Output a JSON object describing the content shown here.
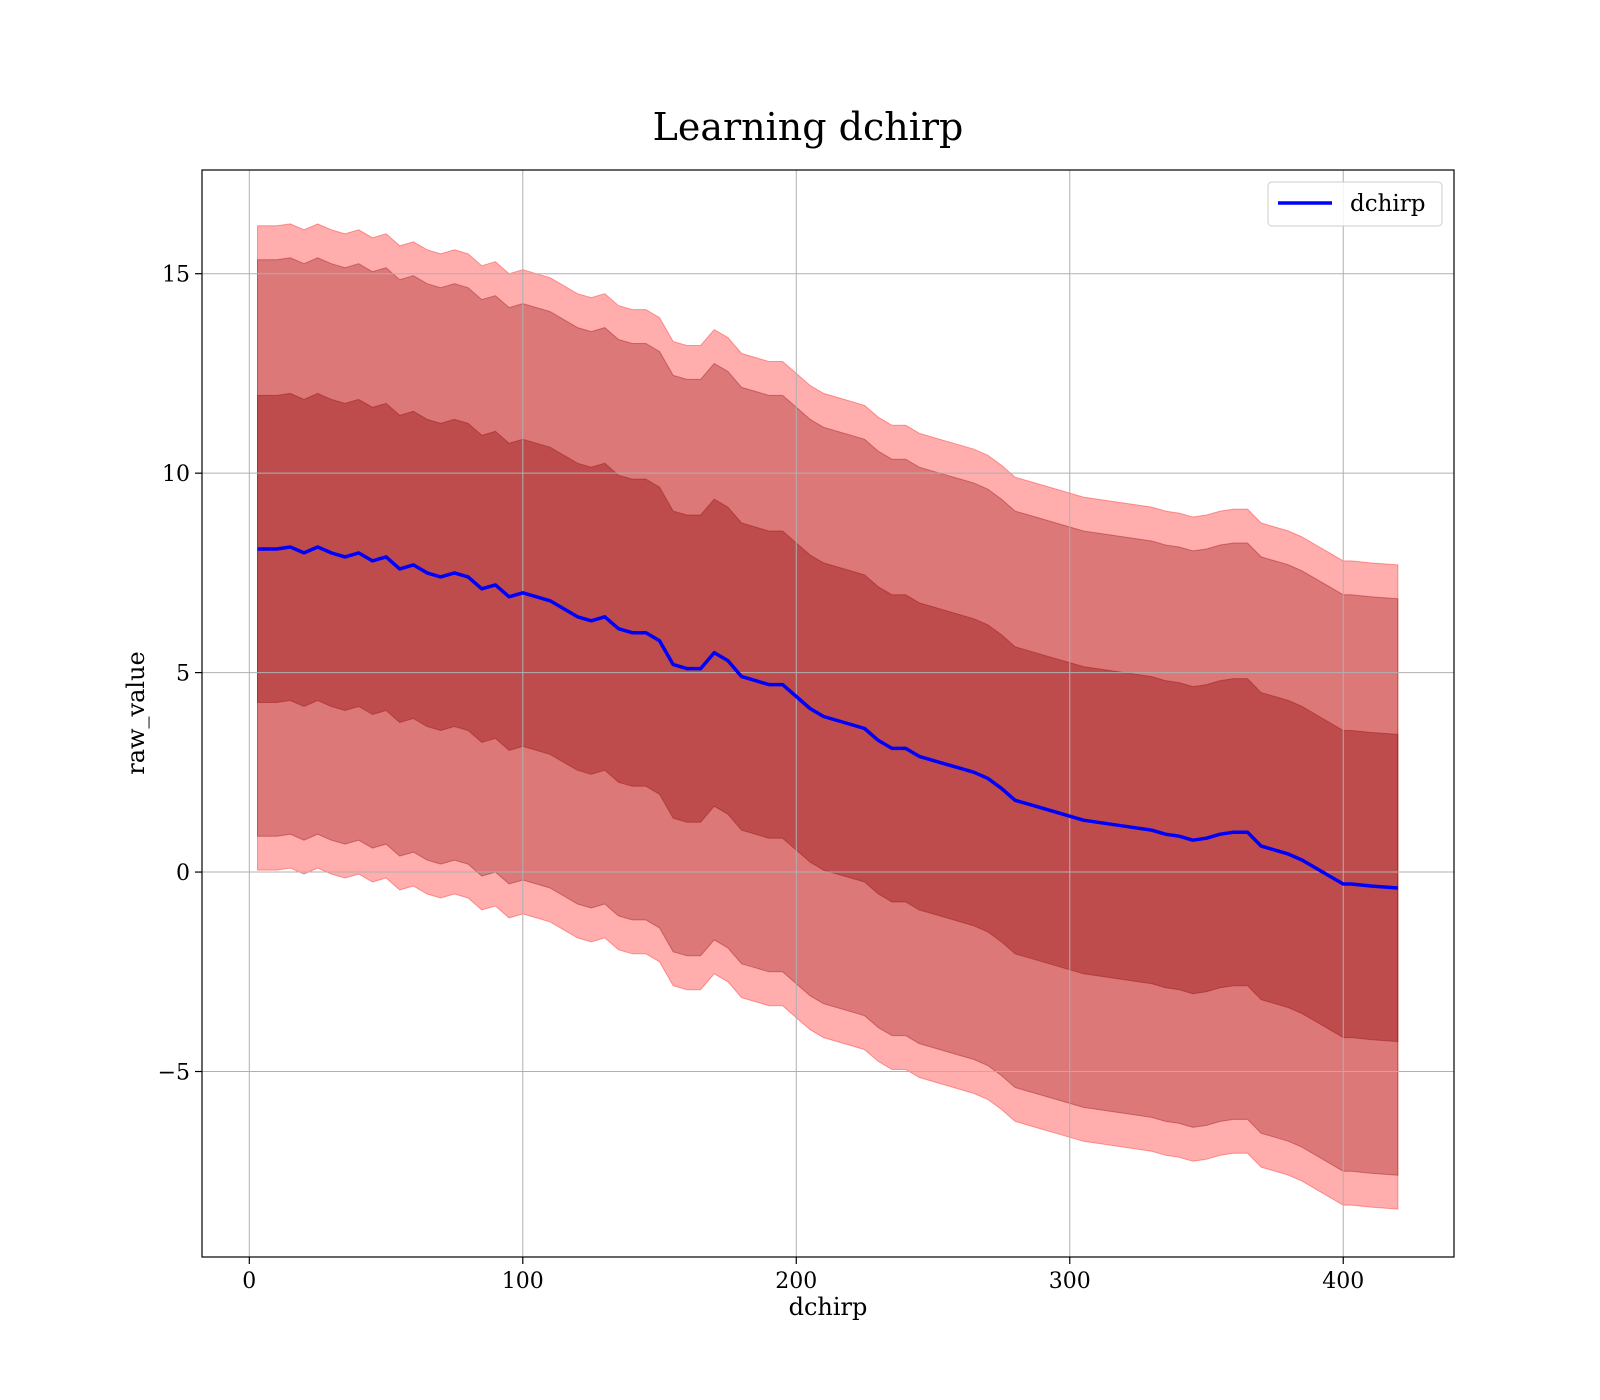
{
  "chart_data": {
    "type": "line",
    "title": "Learning dchirp",
    "xlabel": "dchirp",
    "ylabel": "raw_value",
    "xlim": [
      -17.3,
      440.5
    ],
    "ylim": [
      -9.65,
      17.6
    ],
    "xticks": [
      0,
      100,
      200,
      300,
      400
    ],
    "xtick_labels": [
      "0",
      "100",
      "200",
      "300",
      "400"
    ],
    "yticks": [
      -5,
      0,
      5,
      10,
      15
    ],
    "ytick_labels": [
      "−5",
      "0",
      "5",
      "10",
      "15"
    ],
    "grid": true,
    "legend": {
      "position": "top-right",
      "entries": [
        "dchirp"
      ]
    },
    "colors": {
      "line": "#0000ff",
      "band_outer": "#ff0000",
      "band_inner": "#8b0000",
      "band_middle": "#c8967a"
    },
    "series": [
      {
        "name": "dchirp",
        "type": "line",
        "x": [
          3,
          10,
          15,
          20,
          25,
          30,
          35,
          40,
          45,
          50,
          55,
          60,
          65,
          70,
          75,
          80,
          85,
          90,
          95,
          100,
          105,
          110,
          115,
          120,
          125,
          130,
          135,
          140,
          145,
          150,
          155,
          160,
          165,
          170,
          175,
          180,
          185,
          190,
          195,
          200,
          205,
          210,
          215,
          220,
          225,
          230,
          235,
          240,
          245,
          250,
          255,
          260,
          265,
          270,
          275,
          280,
          285,
          290,
          295,
          300,
          305,
          310,
          315,
          320,
          325,
          330,
          335,
          340,
          345,
          350,
          355,
          360,
          365,
          370,
          375,
          380,
          385,
          390,
          395,
          400,
          403,
          410,
          420
        ],
        "y": [
          8.1,
          8.1,
          8.15,
          8.0,
          8.15,
          8.0,
          7.9,
          8.0,
          7.8,
          7.9,
          7.6,
          7.7,
          7.5,
          7.4,
          7.5,
          7.4,
          7.1,
          7.2,
          6.9,
          7.0,
          6.9,
          6.8,
          6.6,
          6.4,
          6.3,
          6.4,
          6.1,
          6.0,
          6.0,
          5.8,
          5.2,
          5.1,
          5.1,
          5.5,
          5.3,
          4.9,
          4.8,
          4.7,
          4.7,
          4.4,
          4.1,
          3.9,
          3.8,
          3.7,
          3.6,
          3.3,
          3.1,
          3.1,
          2.9,
          2.8,
          2.7,
          2.6,
          2.5,
          2.35,
          2.1,
          1.8,
          1.7,
          1.6,
          1.5,
          1.4,
          1.3,
          1.25,
          1.2,
          1.15,
          1.1,
          1.05,
          0.95,
          0.9,
          0.8,
          0.85,
          0.95,
          1.0,
          1.0,
          0.65,
          0.55,
          0.45,
          0.3,
          0.1,
          -0.1,
          -0.3,
          -0.3,
          -0.35,
          -0.4
        ]
      },
      {
        "name": "",
        "type": "band",
        "offset_lower": -8.05,
        "offset_upper": 8.1
      },
      {
        "name": "",
        "type": "band",
        "offset_lower": -7.2,
        "offset_upper": 7.25
      },
      {
        "name": "",
        "type": "band",
        "offset_lower": -3.85,
        "offset_upper": 3.85
      }
    ]
  }
}
